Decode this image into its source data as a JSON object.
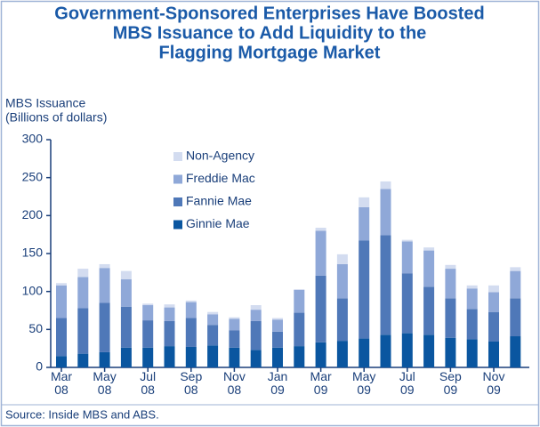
{
  "chart_data": {
    "type": "stacked_bar",
    "title": [
      "Government-Sponsored Enterprises Have Boosted",
      "MBS Issuance to Add Liquidity to the",
      "Flagging Mortgage Market"
    ],
    "ylabel": [
      "MBS Issuance",
      "(Billions of dollars)"
    ],
    "source": "Source: Inside MBS and ABS.",
    "categories": [
      "Mar 08",
      null,
      "May 08",
      null,
      "Jul 08",
      null,
      "Sep 08",
      null,
      "Nov 08",
      null,
      "Jan 09",
      null,
      "Mar 09",
      null,
      "May 09",
      null,
      "Jul 09",
      null,
      "Sep 09",
      null,
      "Nov 09",
      null
    ],
    "series": [
      {
        "name": "Ginnie Mae",
        "color": "#0a56a0",
        "values": [
          15,
          18,
          20,
          26,
          26,
          28,
          27,
          29,
          26,
          23,
          26,
          28,
          33,
          35,
          38,
          43,
          45,
          43,
          39,
          37,
          34,
          41
        ]
      },
      {
        "name": "Fannie Mae",
        "color": "#4f78b8",
        "values": [
          50,
          60,
          65,
          54,
          36,
          33,
          38,
          27,
          23,
          38,
          21,
          44,
          88,
          56,
          129,
          131,
          79,
          63,
          52,
          40,
          39,
          50
        ]
      },
      {
        "name": "Freddie Mac",
        "color": "#8fa8d8",
        "values": [
          43,
          41,
          46,
          36,
          20,
          18,
          21,
          14,
          15,
          15,
          16,
          30,
          59,
          45,
          44,
          61,
          42,
          48,
          39,
          27,
          26,
          36
        ]
      },
      {
        "name": "Non-Agency",
        "color": "#d3dcf0",
        "values": [
          3,
          11,
          5,
          11,
          2,
          4,
          2,
          3,
          2,
          6,
          2,
          1,
          4,
          13,
          13,
          10,
          2,
          4,
          5,
          4,
          9,
          5
        ]
      }
    ],
    "ylim": [
      0,
      300
    ],
    "yticks": [
      0,
      50,
      100,
      150,
      200,
      250,
      300
    ]
  }
}
